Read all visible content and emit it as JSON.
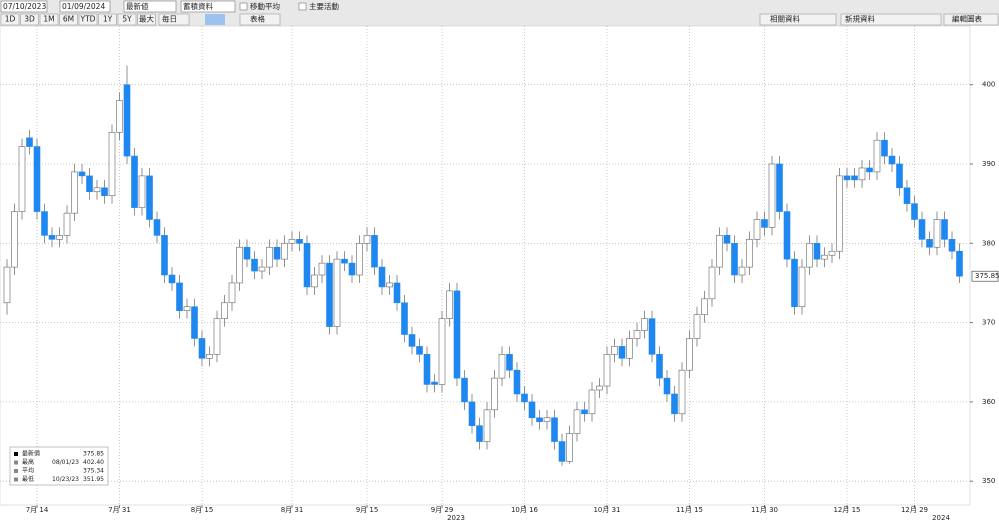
{
  "toolbar": {
    "start_date": "07/10/2023",
    "end_date": "01/09/2024",
    "field": "最新値",
    "mode": "蓄積資料",
    "checkboxes": [
      "移動平均",
      "主要活動"
    ],
    "periods": [
      "1D",
      "3D",
      "1M",
      "6M",
      "YTD",
      "1Y",
      "5Y",
      "最大"
    ],
    "frequency": "毎日",
    "view": "表格",
    "buttons": [
      "相關資料",
      "新規資料",
      "編輯圖表"
    ]
  },
  "chart_data": {
    "type": "candlestick",
    "categories": [
      null,
      null,
      null,
      null,
      "7月 14",
      null,
      null,
      null,
      null,
      null,
      null,
      null,
      null,
      null,
      null,
      "7月 31",
      null,
      null,
      null,
      null,
      null,
      null,
      null,
      null,
      null,
      null,
      "8月 15",
      null,
      null,
      null,
      null,
      null,
      null,
      null,
      null,
      null,
      null,
      null,
      "8月 31",
      null,
      null,
      null,
      null,
      null,
      null,
      null,
      null,
      null,
      "9月 15",
      null,
      null,
      null,
      null,
      null,
      null,
      null,
      null,
      null,
      "9月 29",
      null,
      null,
      null,
      null,
      null,
      null,
      null,
      null,
      null,
      null,
      "10月 16",
      null,
      null,
      null,
      null,
      null,
      null,
      null,
      null,
      null,
      null,
      "10月 31",
      null,
      null,
      null,
      null,
      null,
      null,
      null,
      null,
      null,
      null,
      "11月 15",
      null,
      null,
      null,
      null,
      null,
      null,
      null,
      null,
      null,
      "11月 30",
      null,
      null,
      null,
      null,
      null,
      null,
      null,
      null,
      null,
      null,
      "12月 15",
      null,
      null,
      null,
      null,
      null,
      null,
      null,
      null,
      "12月 29",
      null,
      null,
      null,
      null,
      null,
      null
    ],
    "x_years": [
      "2023",
      "2024"
    ],
    "open": [
      372.5,
      377,
      384,
      393.3,
      392.2,
      384,
      381,
      380.5,
      381,
      383.8,
      389,
      388.5,
      386.5,
      387,
      386,
      394,
      400,
      391,
      384.5,
      388.5,
      383,
      381,
      376,
      375,
      371.5,
      372,
      368,
      365.5,
      366,
      370.5,
      372.5,
      375,
      379.5,
      378,
      376.5,
      377,
      379.5,
      378,
      380,
      380.5,
      380,
      374.5,
      376,
      377.5,
      369.5,
      378,
      377.5,
      376,
      380,
      381,
      377,
      374.5,
      375,
      372.5,
      368.5,
      367,
      366,
      362.5,
      362.2,
      370.5,
      374,
      363,
      360,
      357,
      355,
      359,
      363,
      366,
      364,
      361,
      360,
      358,
      357.5,
      358,
      355,
      352.5,
      356,
      359,
      358.5,
      361.5,
      362,
      366,
      367,
      365.5,
      368,
      369,
      370.5,
      366,
      363,
      361,
      358.5,
      364,
      368,
      371,
      373,
      377,
      381,
      380,
      376,
      377,
      380.5,
      383,
      382,
      390,
      384,
      378,
      372,
      377,
      380,
      378,
      378.5,
      379,
      388.5,
      388.5,
      388,
      389.5,
      389,
      393,
      391,
      390,
      387,
      385,
      383,
      380.5,
      379.5,
      383,
      380.5,
      379
    ],
    "high": [
      378,
      385,
      393.2,
      394.3,
      393.2,
      385,
      382,
      382,
      384.8,
      390,
      390,
      389.5,
      388,
      388,
      395,
      399,
      402.4,
      392,
      389.5,
      389.5,
      384,
      382,
      377,
      376,
      373,
      373,
      369,
      367,
      371.5,
      373.5,
      376,
      380.5,
      380.5,
      379,
      378,
      380.5,
      380.5,
      381,
      381.5,
      381.5,
      381,
      377,
      378.5,
      378.5,
      379,
      379,
      378.5,
      381,
      382,
      382,
      378,
      376,
      376,
      373.5,
      369.5,
      368,
      367,
      363.5,
      371.5,
      375,
      375,
      364,
      361,
      358,
      360,
      364,
      367,
      367,
      365,
      362,
      361,
      359,
      359,
      359,
      356,
      357,
      360,
      360,
      362.5,
      363,
      367,
      368,
      368,
      369,
      370,
      371.5,
      371.5,
      367,
      364,
      362,
      365,
      369,
      372,
      374,
      378,
      382,
      382,
      381,
      378,
      381.5,
      384,
      384,
      391,
      391,
      385,
      379,
      378,
      381,
      381,
      379.5,
      380,
      389.5,
      389.5,
      389.5,
      390.5,
      390.5,
      394,
      394,
      392,
      391,
      388,
      386,
      384,
      381.5,
      384,
      384,
      381.5,
      380
    ],
    "low": [
      371,
      376,
      383,
      391.2,
      383,
      380,
      379.5,
      379.5,
      380,
      382.8,
      387.5,
      385.5,
      385.5,
      385,
      385,
      393,
      390,
      383.5,
      383.5,
      382,
      380,
      375,
      374,
      370.5,
      370.5,
      367,
      364.5,
      364.5,
      365,
      369.5,
      371.5,
      374,
      377,
      375.5,
      375.5,
      376,
      377,
      377,
      379,
      379,
      373.5,
      373.5,
      375,
      368.5,
      368.5,
      376.5,
      375,
      375,
      379,
      376,
      373.5,
      373.5,
      371.5,
      367.5,
      366,
      365,
      361.2,
      361.2,
      361.2,
      369.5,
      362,
      359,
      356,
      354,
      354,
      358,
      362,
      363,
      360,
      359,
      357,
      356.5,
      356.5,
      354,
      351.95,
      352.2,
      355,
      357.5,
      357.5,
      360.5,
      361,
      365,
      364.5,
      364.5,
      367,
      368,
      365,
      362,
      360,
      357.5,
      357.5,
      363,
      367,
      370,
      372,
      376,
      379,
      375,
      375,
      376,
      379.5,
      381,
      381,
      383,
      377,
      371,
      371,
      376,
      377,
      377,
      377.5,
      378,
      387,
      387,
      387,
      388,
      388,
      390,
      389,
      386,
      384,
      382,
      379.5,
      378.5,
      378.5,
      379.5,
      378,
      375
    ],
    "close": [
      377,
      384,
      392.2,
      392.2,
      384,
      381,
      380.5,
      381,
      383.8,
      389,
      388.5,
      386.5,
      387,
      386,
      394,
      398,
      391,
      384.5,
      388.5,
      383,
      381,
      376,
      375,
      371.5,
      372,
      368,
      365.5,
      366,
      370.5,
      372.5,
      375,
      379.5,
      378,
      376.5,
      377,
      379.5,
      378,
      380,
      380.5,
      380,
      374.5,
      376,
      377.5,
      369.5,
      378,
      377.5,
      376,
      380,
      381,
      377,
      374.5,
      375,
      372.5,
      368.5,
      367,
      366,
      362.2,
      362.2,
      370.5,
      374,
      363,
      360,
      357,
      355,
      359,
      363,
      366,
      364,
      361,
      360,
      358,
      357.5,
      358,
      355,
      352.5,
      356,
      359,
      358.5,
      361.5,
      362,
      366,
      367,
      365.5,
      368,
      369,
      370.5,
      366,
      363,
      361,
      358.5,
      364,
      368,
      371,
      373,
      377,
      381,
      380,
      376,
      377,
      380.5,
      383,
      382,
      390,
      384,
      378,
      372,
      377,
      380,
      378,
      378.5,
      379,
      388.5,
      388,
      388,
      389.5,
      389,
      393,
      391,
      390,
      387,
      385,
      383,
      380.5,
      379.5,
      383,
      380.5,
      379,
      375.85
    ],
    "up_color": "#ffffff",
    "down_color": "#1e88f0",
    "ylim": [
      347,
      407.4
    ],
    "yticks": [
      350,
      360,
      370,
      380,
      390,
      400
    ],
    "grid": true,
    "stats": [
      {
        "name": "最新價",
        "value": 375.85
      },
      {
        "name": "最高",
        "date": "08/01/23",
        "value": {
          "value": 402.4,
          "label": "402.40"
        }
      },
      {
        "name": "平均",
        "value": 375.34
      },
      {
        "name": "最低",
        "date": "10/23/23",
        "value": 351.95
      }
    ]
  }
}
